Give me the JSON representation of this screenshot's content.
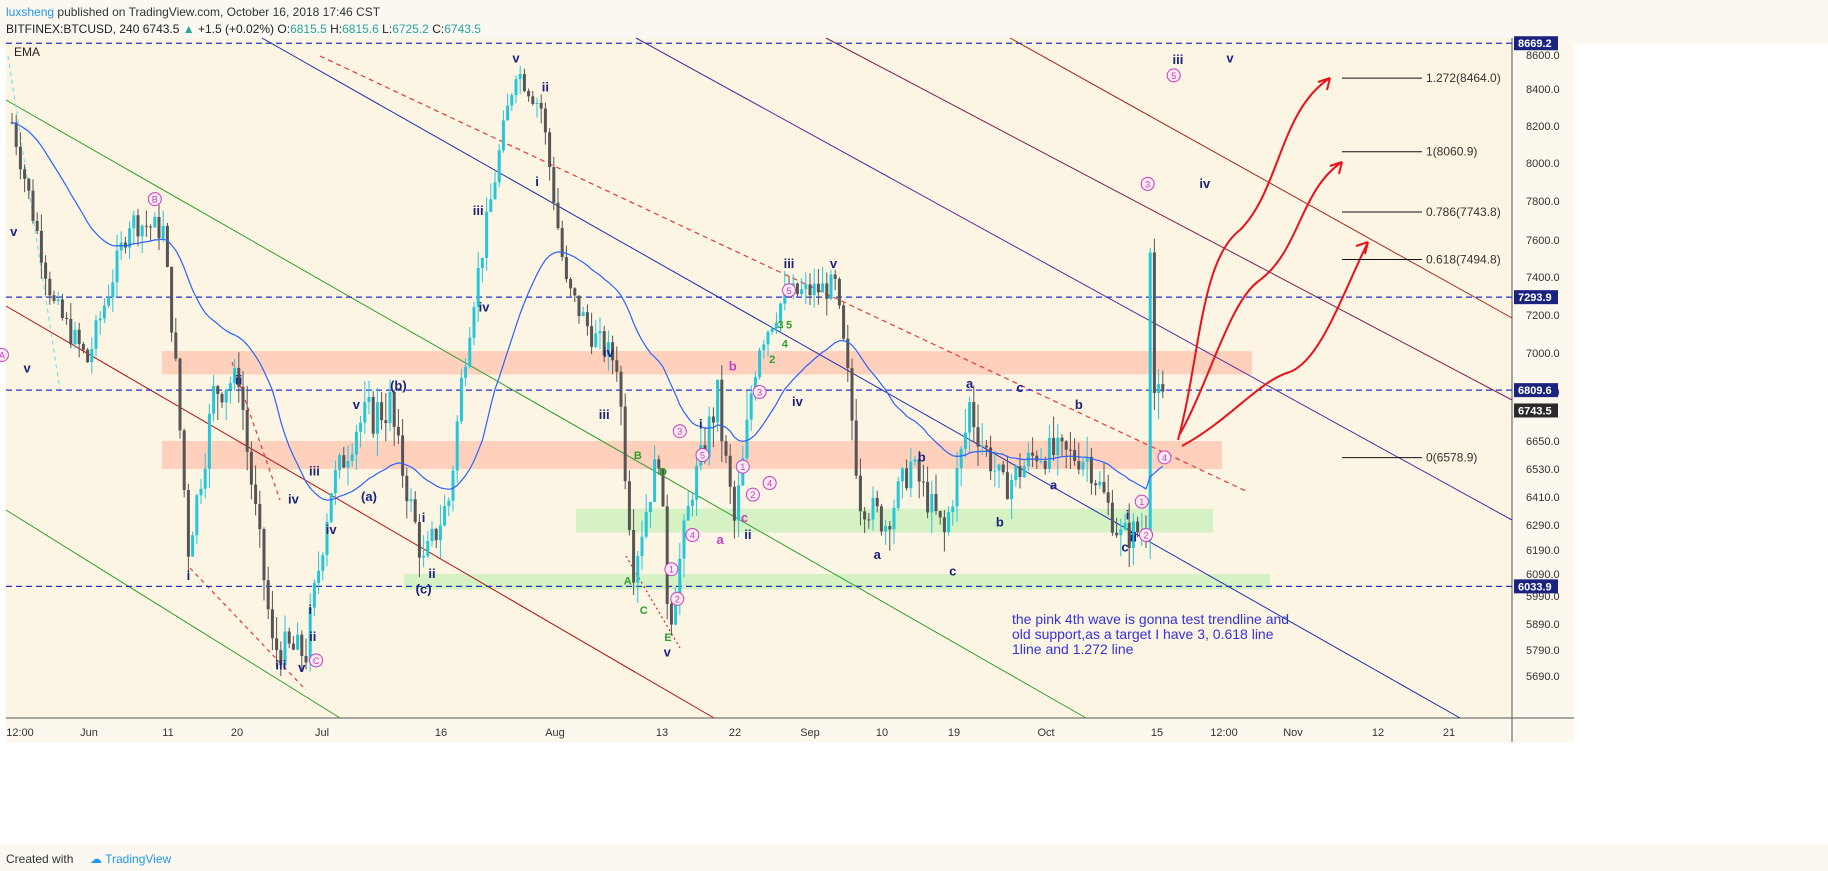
{
  "header": {
    "author": "luxsheng",
    "published": "published on TradingView.com, October 16, 2018 17:46 CST",
    "symbol": "BITFINEX:BTCUSD, 240",
    "last": "6743.5",
    "change": "+1.5 (+0.02%)",
    "o_label": "O:",
    "o": "6815.5",
    "h_label": "H:",
    "h": "6815.6",
    "l_label": "L:",
    "l": "6725.2",
    "c_label": "C:",
    "c": "6743.5"
  },
  "indicator": "EMA",
  "footer": {
    "created_with": "Created with",
    "brand": "TradingView"
  },
  "colors": {
    "plot_bg": "#fdf5e3",
    "up_candle": "#26c6da",
    "down_candle": "#555555",
    "ema": "#2962ff",
    "wave": "#1a237e",
    "pink": "#c040c0",
    "green_label": "#2e9e2e",
    "resistance": "#ffc4b0",
    "support": "#c8efb8",
    "red_arrow": "#e8121a",
    "dashed_blue": "#2233cc"
  },
  "chart_data": {
    "type": "candlestick",
    "price_scale": {
      "ticks": [
        8600,
        8400,
        8200,
        8000,
        7800,
        7600,
        7400,
        7200,
        7000,
        6800,
        6650,
        6530,
        6410,
        6290,
        6190,
        6090,
        5990,
        5890,
        5790,
        5690
      ],
      "labels": [
        "8600.0",
        "8400.0",
        "8200.0",
        "8000.0",
        "7800.0",
        "7600.0",
        "7400.0",
        "7200.0",
        "7000.0",
        "6800.0",
        "6650.0",
        "6530.0",
        "6410.0",
        "6290.0",
        "6190.0",
        "6090.0",
        "5990.0",
        "5890.0",
        "5790.0",
        "5690.0"
      ]
    },
    "time_scale": {
      "labels": [
        "12:00",
        "Jun",
        "11",
        "20",
        "Jul",
        "16",
        "Aug",
        "13",
        "22",
        "Sep",
        "10",
        "19",
        "Oct",
        "15",
        "12:00",
        "Nov",
        "12",
        "21"
      ]
    },
    "price_marks": [
      {
        "label": "8669.2",
        "value": 8669.2
      },
      {
        "label": "7293.9",
        "value": 7293.9
      },
      {
        "label": "6809.6",
        "value": 6809.6
      },
      {
        "label": "6743.5",
        "value": 6743.5
      },
      {
        "label": "6033.9",
        "value": 6033.9
      }
    ],
    "fib_levels": [
      {
        "label": "1.272(8464.0)",
        "value": 8464.0
      },
      {
        "label": "1(8060.9)",
        "value": 8060.9
      },
      {
        "label": "0.786(7743.8)",
        "value": 7743.8
      },
      {
        "label": "0.618(7494.8)",
        "value": 7494.8
      },
      {
        "label": "0(6578.9)",
        "value": 6578.9
      }
    ],
    "zones": [
      {
        "kind": "resistance",
        "low": 6890,
        "high": 7010
      },
      {
        "kind": "resistance",
        "low": 6530,
        "high": 6650
      },
      {
        "kind": "support",
        "low": 6260,
        "high": 6360
      },
      {
        "kind": "support",
        "low": 6020,
        "high": 6090
      }
    ],
    "wave_labels": [
      {
        "t": "v",
        "d": 0.2,
        "p": 7640,
        "c": "wave"
      },
      {
        "t": "A",
        "d": -1.2,
        "p": 6990,
        "c": "pink",
        "circle": true
      },
      {
        "t": "v",
        "d": 1.8,
        "p": 6920,
        "c": "wave"
      },
      {
        "t": "B",
        "d": 17,
        "p": 7810,
        "c": "pink",
        "circle": true
      },
      {
        "t": "i",
        "d": 21,
        "p": 6080,
        "c": "wave"
      },
      {
        "t": "ii",
        "d": 27,
        "p": 6860,
        "c": "wave"
      },
      {
        "t": "iii",
        "d": 32,
        "p": 5730,
        "c": "wave"
      },
      {
        "t": "iv",
        "d": 33.5,
        "p": 6400,
        "c": "wave"
      },
      {
        "t": "v",
        "d": 34.5,
        "p": 5720,
        "c": "wave"
      },
      {
        "t": "iii",
        "d": 36,
        "p": 6520,
        "c": "wave"
      },
      {
        "t": "i",
        "d": 35.5,
        "p": 5940,
        "c": "wave"
      },
      {
        "t": "ii",
        "d": 35.8,
        "p": 5840,
        "c": "wave"
      },
      {
        "t": "C",
        "d": 36.2,
        "p": 5750,
        "c": "pink",
        "circle": true
      },
      {
        "t": "iv",
        "d": 38,
        "p": 6270,
        "c": "wave"
      },
      {
        "t": "(a)",
        "d": 42.5,
        "p": 6410,
        "c": "wave"
      },
      {
        "t": "v",
        "d": 41,
        "p": 6760,
        "c": "wave"
      },
      {
        "t": "(b)",
        "d": 46,
        "p": 6830,
        "c": "wave"
      },
      {
        "t": "i",
        "d": 49,
        "p": 6320,
        "c": "wave"
      },
      {
        "t": "ii",
        "d": 50,
        "p": 6090,
        "c": "wave"
      },
      {
        "t": "(c)",
        "d": 49,
        "p": 6020,
        "c": "wave"
      },
      {
        "t": "iii",
        "d": 55.5,
        "p": 7750,
        "c": "wave"
      },
      {
        "t": "iv",
        "d": 56.2,
        "p": 7240,
        "c": "wave"
      },
      {
        "t": "v",
        "d": 60,
        "p": 8580,
        "c": "wave"
      },
      {
        "t": "ii",
        "d": 63.5,
        "p": 8410,
        "c": "wave"
      },
      {
        "t": "i",
        "d": 62.5,
        "p": 7900,
        "c": "wave"
      },
      {
        "t": "iv",
        "d": 71,
        "p": 7000,
        "c": "wave"
      },
      {
        "t": "iii",
        "d": 70.5,
        "p": 6730,
        "c": "wave"
      },
      {
        "t": "B",
        "d": 74.5,
        "p": 6590,
        "c": "green_label"
      },
      {
        "t": "A",
        "d": 73.3,
        "p": 6060,
        "c": "green_label"
      },
      {
        "t": "C",
        "d": 75.2,
        "p": 5940,
        "c": "green_label"
      },
      {
        "t": "D",
        "d": 77.5,
        "p": 6520,
        "c": "green_label"
      },
      {
        "t": "E",
        "d": 78.1,
        "p": 5840,
        "c": "green_label"
      },
      {
        "t": "v",
        "d": 78,
        "p": 5780,
        "c": "wave"
      },
      {
        "t": "1",
        "d": 78.5,
        "p": 6110,
        "c": "pink",
        "circle": true
      },
      {
        "t": "2",
        "d": 79.2,
        "p": 5980,
        "c": "pink",
        "circle": true
      },
      {
        "t": "3",
        "d": 79.5,
        "p": 6680,
        "c": "pink",
        "circle": true
      },
      {
        "t": "4",
        "d": 81,
        "p": 6250,
        "c": "pink",
        "circle": true
      },
      {
        "t": "5",
        "d": 82.2,
        "p": 6590,
        "c": "pink",
        "circle": true
      },
      {
        "t": "i",
        "d": 82,
        "p": 6700,
        "c": "wave"
      },
      {
        "t": "b",
        "d": 85.8,
        "p": 6930,
        "c": "pink"
      },
      {
        "t": "a",
        "d": 84.3,
        "p": 6230,
        "c": "pink"
      },
      {
        "t": "1",
        "d": 87,
        "p": 6540,
        "c": "pink",
        "circle": true
      },
      {
        "t": "2",
        "d": 88.2,
        "p": 6420,
        "c": "pink",
        "circle": true
      },
      {
        "t": "c",
        "d": 87.2,
        "p": 6320,
        "c": "pink"
      },
      {
        "t": "ii",
        "d": 87.6,
        "p": 6250,
        "c": "wave"
      },
      {
        "t": "3",
        "d": 89,
        "p": 6800,
        "c": "pink",
        "circle": true
      },
      {
        "t": "4",
        "d": 90.2,
        "p": 6470,
        "c": "pink",
        "circle": true
      },
      {
        "t": "iii",
        "d": 92.5,
        "p": 7470,
        "c": "wave"
      },
      {
        "t": "5",
        "d": 92.5,
        "p": 7330,
        "c": "pink",
        "circle": true
      },
      {
        "t": "3",
        "d": 91.5,
        "p": 7150,
        "c": "green_label"
      },
      {
        "t": "5",
        "d": 92.5,
        "p": 7150,
        "c": "green_label"
      },
      {
        "t": "4",
        "d": 92,
        "p": 7050,
        "c": "green_label"
      },
      {
        "t": "2",
        "d": 90.5,
        "p": 6970,
        "c": "green_label"
      },
      {
        "t": "iv",
        "d": 93.5,
        "p": 6770,
        "c": "wave"
      },
      {
        "t": "v",
        "d": 97.8,
        "p": 7470,
        "c": "wave"
      },
      {
        "t": "a",
        "d": 103,
        "p": 6170,
        "c": "wave"
      },
      {
        "t": "b",
        "d": 108.3,
        "p": 6580,
        "c": "wave"
      },
      {
        "t": "c",
        "d": 112,
        "p": 6100,
        "c": "wave"
      },
      {
        "t": "a",
        "d": 114,
        "p": 6840,
        "c": "wave"
      },
      {
        "t": "b",
        "d": 117.6,
        "p": 6300,
        "c": "wave"
      },
      {
        "t": "c",
        "d": 120,
        "p": 6820,
        "c": "wave"
      },
      {
        "t": "a",
        "d": 124,
        "p": 6460,
        "c": "wave"
      },
      {
        "t": "b",
        "d": 127,
        "p": 6760,
        "c": "wave"
      },
      {
        "t": "c",
        "d": 132.5,
        "p": 6200,
        "c": "wave"
      },
      {
        "t": "1",
        "d": 134.5,
        "p": 6390,
        "c": "pink",
        "circle": true
      },
      {
        "t": "2",
        "d": 135,
        "p": 6250,
        "c": "pink",
        "circle": true
      },
      {
        "t": "i",
        "d": 132.8,
        "p": 6330,
        "c": "wave"
      },
      {
        "t": "ii",
        "d": 133.5,
        "p": 6240,
        "c": "wave"
      },
      {
        "t": "3",
        "d": 135.2,
        "p": 7890,
        "c": "pink",
        "circle": true
      },
      {
        "t": "4",
        "d": 137.2,
        "p": 6580,
        "c": "pink",
        "circle": true
      },
      {
        "t": "iv",
        "d": 142,
        "p": 7890,
        "c": "wave"
      },
      {
        "t": "5",
        "d": 138.3,
        "p": 8480,
        "c": "pink",
        "circle": true
      },
      {
        "t": "iii",
        "d": 138.8,
        "p": 8570,
        "c": "wave"
      },
      {
        "t": "v",
        "d": 145,
        "p": 8580,
        "c": "wave"
      }
    ],
    "annotation": {
      "lines": [
        "the pink 4th wave is gonna test trendline and",
        "old support,as a target I have 3, 0.618 line",
        "1line and 1.272 line"
      ]
    }
  }
}
